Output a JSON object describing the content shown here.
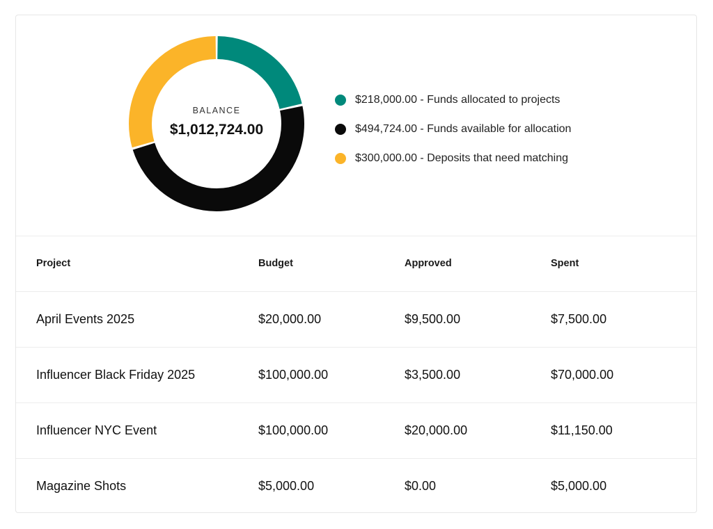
{
  "balance": {
    "label": "BALANCE",
    "value": "$1,012,724.00"
  },
  "allocation": {
    "segments": [
      {
        "amount": 218000,
        "color": "#00897b",
        "text": "$218,000.00 - Funds allocated to projects"
      },
      {
        "amount": 494724,
        "color": "#0a0a0a",
        "text": "$494,724.00 - Funds available for allocation"
      },
      {
        "amount": 300000,
        "color": "#fbb429",
        "text": "$300,000.00 - Deposits that need matching"
      }
    ]
  },
  "table": {
    "headers": {
      "project": "Project",
      "budget": "Budget",
      "approved": "Approved",
      "spent": "Spent"
    },
    "rows": [
      {
        "project": "April Events 2025",
        "budget": "$20,000.00",
        "approved": "$9,500.00",
        "spent": "$7,500.00"
      },
      {
        "project": "Influencer Black Friday 2025",
        "budget": "$100,000.00",
        "approved": "$3,500.00",
        "spent": "$70,000.00"
      },
      {
        "project": "Influencer NYC Event",
        "budget": "$100,000.00",
        "approved": "$20,000.00",
        "spent": "$11,150.00"
      },
      {
        "project": "Magazine Shots",
        "budget": "$5,000.00",
        "approved": "$0.00",
        "spent": "$5,000.00"
      }
    ]
  }
}
